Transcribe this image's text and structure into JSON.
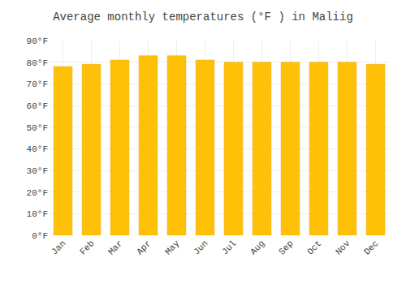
{
  "chart_data": {
    "type": "bar",
    "title": "Average monthly temperatures (°F ) in Maliig",
    "categories": [
      "Jan",
      "Feb",
      "Mar",
      "Apr",
      "May",
      "Jun",
      "Jul",
      "Aug",
      "Sep",
      "Oct",
      "Nov",
      "Dec"
    ],
    "values": [
      78,
      79,
      81,
      83,
      83,
      81,
      80,
      80,
      80,
      80,
      80,
      79
    ],
    "color": "#FFC107",
    "ylim": [
      0,
      90
    ],
    "yticks": [
      {
        "value": 0,
        "label": "0°F"
      },
      {
        "value": 10,
        "label": "10°F"
      },
      {
        "value": 20,
        "label": "20°F"
      },
      {
        "value": 30,
        "label": "30°F"
      },
      {
        "value": 40,
        "label": "40°F"
      },
      {
        "value": 50,
        "label": "50°F"
      },
      {
        "value": 60,
        "label": "60°F"
      },
      {
        "value": 70,
        "label": "70°F"
      },
      {
        "value": 80,
        "label": "80°F"
      },
      {
        "value": 90,
        "label": "90°F"
      }
    ],
    "grid": true
  }
}
